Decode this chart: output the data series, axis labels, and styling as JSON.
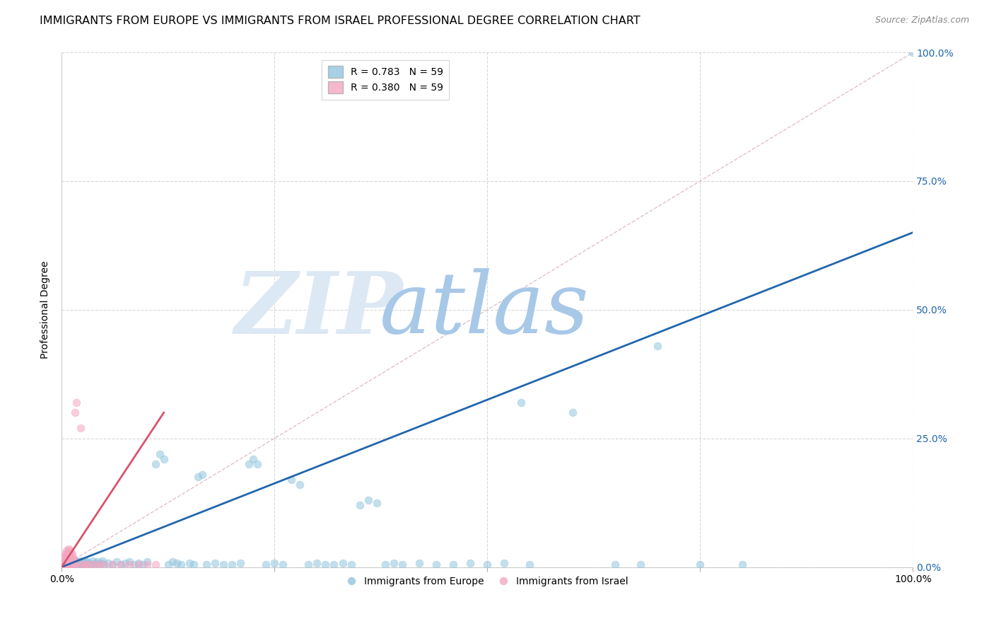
{
  "title": "IMMIGRANTS FROM EUROPE VS IMMIGRANTS FROM ISRAEL PROFESSIONAL DEGREE CORRELATION CHART",
  "source": "Source: ZipAtlas.com",
  "ylabel": "Professional Degree",
  "xlim": [
    0,
    1.0
  ],
  "ylim": [
    0,
    1.0
  ],
  "ytick_labels": [
    "0.0%",
    "25.0%",
    "50.0%",
    "75.0%",
    "100.0%"
  ],
  "ytick_positions": [
    0.0,
    0.25,
    0.5,
    0.75,
    1.0
  ],
  "xtick_labels": [
    "0.0%",
    "100.0%"
  ],
  "watermark_zip": "ZIP",
  "watermark_atlas": "atlas",
  "blue_color": "#92c5de",
  "pink_color": "#f4a6c0",
  "blue_line_color": "#2166ac",
  "pink_line_color": "#d6546e",
  "diag_color": "#d0d0d0",
  "grid_color": "#d8d8d8",
  "background_color": "#ffffff",
  "blue_scatter": [
    [
      0.005,
      0.005
    ],
    [
      0.006,
      0.01
    ],
    [
      0.007,
      0.005
    ],
    [
      0.008,
      0.008
    ],
    [
      0.009,
      0.005
    ],
    [
      0.01,
      0.01
    ],
    [
      0.011,
      0.005
    ],
    [
      0.012,
      0.008
    ],
    [
      0.013,
      0.005
    ],
    [
      0.014,
      0.01
    ],
    [
      0.015,
      0.005
    ],
    [
      0.016,
      0.008
    ],
    [
      0.017,
      0.012
    ],
    [
      0.018,
      0.005
    ],
    [
      0.019,
      0.01
    ],
    [
      0.02,
      0.005
    ],
    [
      0.021,
      0.008
    ],
    [
      0.022,
      0.012
    ],
    [
      0.023,
      0.005
    ],
    [
      0.024,
      0.01
    ],
    [
      0.025,
      0.005
    ],
    [
      0.026,
      0.008
    ],
    [
      0.027,
      0.012
    ],
    [
      0.028,
      0.005
    ],
    [
      0.03,
      0.01
    ],
    [
      0.032,
      0.008
    ],
    [
      0.034,
      0.005
    ],
    [
      0.036,
      0.012
    ],
    [
      0.038,
      0.005
    ],
    [
      0.04,
      0.008
    ],
    [
      0.042,
      0.01
    ],
    [
      0.044,
      0.005
    ],
    [
      0.046,
      0.008
    ],
    [
      0.048,
      0.012
    ],
    [
      0.05,
      0.005
    ],
    [
      0.055,
      0.008
    ],
    [
      0.06,
      0.005
    ],
    [
      0.065,
      0.01
    ],
    [
      0.07,
      0.005
    ],
    [
      0.075,
      0.008
    ],
    [
      0.08,
      0.01
    ],
    [
      0.085,
      0.005
    ],
    [
      0.09,
      0.008
    ],
    [
      0.095,
      0.005
    ],
    [
      0.1,
      0.01
    ],
    [
      0.11,
      0.2
    ],
    [
      0.115,
      0.22
    ],
    [
      0.12,
      0.21
    ],
    [
      0.125,
      0.005
    ],
    [
      0.13,
      0.01
    ],
    [
      0.135,
      0.008
    ],
    [
      0.14,
      0.005
    ],
    [
      0.15,
      0.008
    ],
    [
      0.155,
      0.005
    ],
    [
      0.16,
      0.175
    ],
    [
      0.165,
      0.18
    ],
    [
      0.17,
      0.005
    ],
    [
      0.18,
      0.008
    ],
    [
      0.19,
      0.005
    ],
    [
      0.2,
      0.005
    ],
    [
      0.21,
      0.008
    ],
    [
      0.22,
      0.2
    ],
    [
      0.225,
      0.21
    ],
    [
      0.23,
      0.2
    ],
    [
      0.24,
      0.005
    ],
    [
      0.25,
      0.008
    ],
    [
      0.26,
      0.005
    ],
    [
      0.27,
      0.17
    ],
    [
      0.28,
      0.16
    ],
    [
      0.29,
      0.005
    ],
    [
      0.3,
      0.008
    ],
    [
      0.31,
      0.005
    ],
    [
      0.32,
      0.005
    ],
    [
      0.33,
      0.008
    ],
    [
      0.34,
      0.005
    ],
    [
      0.35,
      0.12
    ],
    [
      0.36,
      0.13
    ],
    [
      0.37,
      0.125
    ],
    [
      0.38,
      0.005
    ],
    [
      0.39,
      0.008
    ],
    [
      0.4,
      0.005
    ],
    [
      0.42,
      0.008
    ],
    [
      0.44,
      0.005
    ],
    [
      0.46,
      0.005
    ],
    [
      0.48,
      0.008
    ],
    [
      0.5,
      0.005
    ],
    [
      0.52,
      0.008
    ],
    [
      0.54,
      0.32
    ],
    [
      0.55,
      0.005
    ],
    [
      0.6,
      0.3
    ],
    [
      0.65,
      0.005
    ],
    [
      0.68,
      0.005
    ],
    [
      0.7,
      0.43
    ],
    [
      0.75,
      0.005
    ],
    [
      0.8,
      0.005
    ],
    [
      1.0,
      1.0
    ]
  ],
  "pink_scatter": [
    [
      0.002,
      0.005
    ],
    [
      0.003,
      0.01
    ],
    [
      0.003,
      0.02
    ],
    [
      0.004,
      0.005
    ],
    [
      0.004,
      0.015
    ],
    [
      0.004,
      0.025
    ],
    [
      0.005,
      0.005
    ],
    [
      0.005,
      0.012
    ],
    [
      0.005,
      0.022
    ],
    [
      0.006,
      0.005
    ],
    [
      0.006,
      0.015
    ],
    [
      0.006,
      0.025
    ],
    [
      0.006,
      0.032
    ],
    [
      0.007,
      0.005
    ],
    [
      0.007,
      0.012
    ],
    [
      0.007,
      0.022
    ],
    [
      0.007,
      0.03
    ],
    [
      0.008,
      0.005
    ],
    [
      0.008,
      0.012
    ],
    [
      0.008,
      0.025
    ],
    [
      0.008,
      0.035
    ],
    [
      0.009,
      0.005
    ],
    [
      0.009,
      0.015
    ],
    [
      0.009,
      0.028
    ],
    [
      0.01,
      0.005
    ],
    [
      0.01,
      0.012
    ],
    [
      0.01,
      0.022
    ],
    [
      0.01,
      0.032
    ],
    [
      0.011,
      0.005
    ],
    [
      0.011,
      0.015
    ],
    [
      0.011,
      0.028
    ],
    [
      0.012,
      0.005
    ],
    [
      0.012,
      0.012
    ],
    [
      0.012,
      0.025
    ],
    [
      0.013,
      0.005
    ],
    [
      0.013,
      0.018
    ],
    [
      0.014,
      0.005
    ],
    [
      0.014,
      0.015
    ],
    [
      0.015,
      0.005
    ],
    [
      0.015,
      0.012
    ],
    [
      0.016,
      0.3
    ],
    [
      0.017,
      0.32
    ],
    [
      0.02,
      0.005
    ],
    [
      0.022,
      0.27
    ],
    [
      0.025,
      0.005
    ],
    [
      0.028,
      0.005
    ],
    [
      0.03,
      0.005
    ],
    [
      0.035,
      0.005
    ],
    [
      0.04,
      0.005
    ],
    [
      0.045,
      0.005
    ],
    [
      0.05,
      0.005
    ],
    [
      0.06,
      0.005
    ],
    [
      0.07,
      0.005
    ],
    [
      0.08,
      0.005
    ],
    [
      0.09,
      0.005
    ],
    [
      0.1,
      0.005
    ],
    [
      0.11,
      0.005
    ]
  ],
  "blue_line_x": [
    0.0,
    1.0
  ],
  "blue_line_y": [
    0.0,
    0.65
  ],
  "pink_line_x": [
    0.0,
    0.12
  ],
  "pink_line_y": [
    0.0,
    0.3
  ],
  "diag_line_x": [
    0.0,
    1.0
  ],
  "diag_line_y": [
    0.0,
    1.0
  ],
  "title_fontsize": 11.5,
  "source_fontsize": 9,
  "axis_label_fontsize": 10,
  "tick_fontsize": 10,
  "dot_size": 60,
  "legend_fontsize": 10
}
